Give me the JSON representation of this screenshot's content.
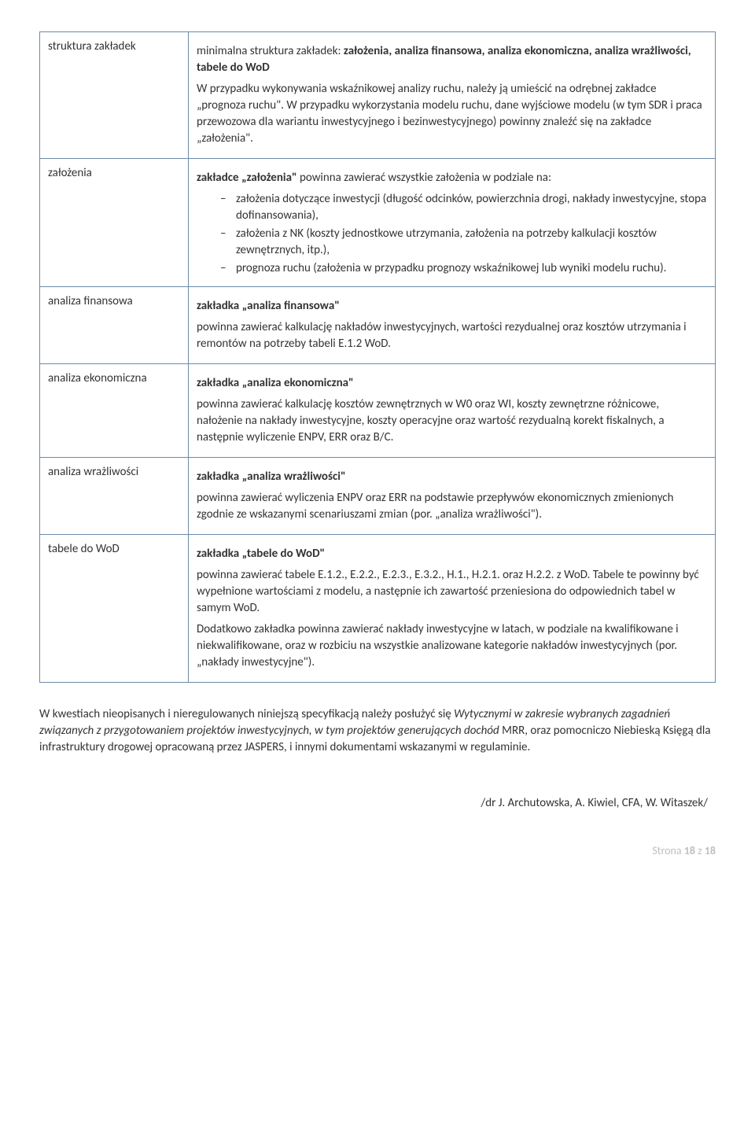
{
  "table": {
    "rows": [
      {
        "label": "struktura zakładek",
        "p1_a": "minimalna struktura zakładek: ",
        "p1_b": "założenia, analiza finansowa, analiza ekonomiczna, analiza wrażliwości, tabele do WoD",
        "p2": "W przypadku wykonywania wskaźnikowej analizy ruchu, należy ją umieścić na odrębnej zakładce „prognoza ruchu\". W przypadku wykorzystania modelu ruchu, dane wyjściowe modelu (w tym SDR i praca przewozowa dla wariantu inwestycyjnego i bezinwestycyjnego) powinny znaleźć się na zakładce „założenia\"."
      },
      {
        "label": "założenia",
        "p1_a": "zakładce „założenia\"",
        "p1_b": " powinna zawierać wszystkie założenia w podziale na:",
        "li1": "założenia dotyczące inwestycji (długość odcinków, powierzchnia drogi, nakłady inwestycyjne, stopa dofinansowania),",
        "li2": "założenia z NK (koszty jednostkowe utrzymania, założenia na potrzeby kalkulacji kosztów zewnętrznych, itp.),",
        "li3": "prognoza ruchu (założenia w przypadku prognozy wskaźnikowej lub wyniki modelu ruchu)."
      },
      {
        "label": "analiza finansowa",
        "p1": "zakładka „analiza finansowa\"",
        "p2": "powinna zawierać kalkulację nakładów inwestycyjnych, wartości rezydualnej oraz kosztów utrzymania i remontów na potrzeby tabeli E.1.2 WoD."
      },
      {
        "label": "analiza ekonomiczna",
        "p1": "zakładka „analiza ekonomiczna\"",
        "p2": "powinna zawierać kalkulację kosztów zewnętrznych w W0 oraz WI, koszty zewnętrzne różnicowe, nałożenie na nakłady inwestycyjne, koszty operacyjne oraz wartość rezydualną korekt fiskalnych, a następnie wyliczenie ENPV, ERR oraz B/C."
      },
      {
        "label": "analiza wrażliwości",
        "p1": "zakładka „analiza wrażliwości\"",
        "p2": "powinna zawierać wyliczenia ENPV oraz ERR na podstawie przepływów ekonomicznych zmienionych zgodnie ze wskazanymi scenariuszami zmian (por. „analiza wrażliwości\")."
      },
      {
        "label": "tabele do WoD",
        "p1": "zakładka „tabele do WoD\"",
        "p2": "powinna zawierać tabele E.1.2., E.2.2., E.2.3., E.3.2., H.1., H.2.1. oraz H.2.2. z WoD. Tabele te powinny być wypełnione wartościami z modelu, a następnie ich zawartość przeniesiona do odpowiednich tabel w samym WoD.",
        "p3": "Dodatkowo zakładka powinna zawierać nakłady inwestycyjne w latach, w podziale na kwalifikowane i niekwalifikowane, oraz w rozbiciu na wszystkie analizowane kategorie nakładów inwestycyjnych (por. „nakłady inwestycyjne\")."
      }
    ]
  },
  "after": {
    "seg1": "W kwestiach nieopisanych i nieregulowanych niniejszą specyfikacją należy posłużyć się ",
    "seg2_italic": "Wytycznymi w zakresie wybranych zagadnień związanych z przygotowaniem projektów inwestycyjnych, w tym projektów generujących dochód",
    "seg3": " MRR, oraz pomocniczo Niebieską Księgą dla infrastruktury drogowej opracowaną przez JASPERS, i innymi dokumentami wskazanymi w regulaminie."
  },
  "signature": "/dr J. Archutowska, A. Kiwiel, CFA, W. Witaszek/",
  "footer": {
    "a": "Strona ",
    "b": "18",
    "c": " z ",
    "d": "18"
  }
}
